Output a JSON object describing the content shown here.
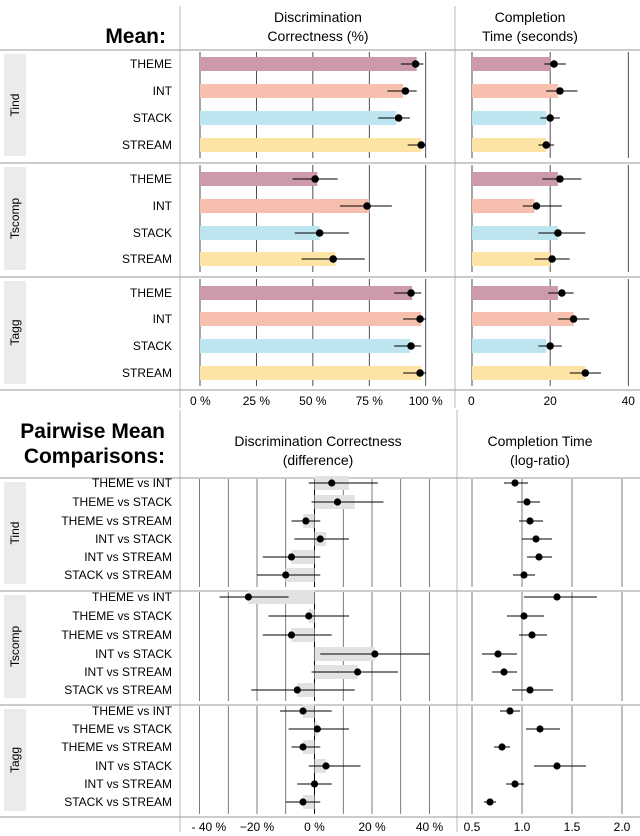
{
  "chart_data": [
    {
      "type": "bar",
      "panel_label": "Mean:",
      "columns": [
        {
          "title": [
            "Discrimination",
            "Correctness (%)"
          ],
          "tick_labels": [
            "0 %",
            "25 %",
            "50 %",
            "75 %",
            "100 %"
          ],
          "ticks": [
            0,
            25,
            50,
            75,
            100
          ],
          "xlim": [
            0,
            105
          ]
        },
        {
          "title": [
            "Completion",
            "Time (seconds)"
          ],
          "tick_labels": [
            "0",
            "20",
            "40"
          ],
          "ticks": [
            0,
            20,
            40
          ],
          "xlim": [
            0,
            43
          ]
        }
      ],
      "series_colors": {
        "THEME": "#cc99ad",
        "INT": "#f7bfad",
        "STACK": "#bde5ef",
        "STREAM": "#fde4a5"
      },
      "groups": [
        {
          "name": "Tind",
          "rows": [
            {
              "label": "THEME",
              "correctness": {
                "bar": 96,
                "mean": 95.5,
                "lo": 89,
                "hi": 99
              },
              "time": {
                "bar": 20,
                "mean": 21,
                "lo": 18.5,
                "hi": 24
              }
            },
            {
              "label": "INT",
              "correctness": {
                "bar": 90,
                "mean": 91,
                "lo": 83,
                "hi": 96
              },
              "time": {
                "bar": 22,
                "mean": 22.5,
                "lo": 19,
                "hi": 27
              }
            },
            {
              "label": "STACK",
              "correctness": {
                "bar": 87,
                "mean": 88,
                "lo": 79,
                "hi": 93
              },
              "time": {
                "bar": 19,
                "mean": 20,
                "lo": 17.5,
                "hi": 22.5
              }
            },
            {
              "label": "STREAM",
              "correctness": {
                "bar": 98,
                "mean": 98,
                "lo": 92,
                "hi": 100
              },
              "time": {
                "bar": 19,
                "mean": 19,
                "lo": 17,
                "hi": 21
              }
            }
          ]
        },
        {
          "name": "Tscomp",
          "rows": [
            {
              "label": "THEME",
              "correctness": {
                "bar": 52,
                "mean": 51,
                "lo": 41,
                "hi": 61
              },
              "time": {
                "bar": 22,
                "mean": 22.5,
                "lo": 18,
                "hi": 28
              }
            },
            {
              "label": "INT",
              "correctness": {
                "bar": 75,
                "mean": 74,
                "lo": 62,
                "hi": 85
              },
              "time": {
                "bar": 16,
                "mean": 16.5,
                "lo": 13,
                "hi": 23
              }
            },
            {
              "label": "STACK",
              "correctness": {
                "bar": 53,
                "mean": 53,
                "lo": 42,
                "hi": 66
              },
              "time": {
                "bar": 22,
                "mean": 22,
                "lo": 17,
                "hi": 29
              }
            },
            {
              "label": "STREAM",
              "correctness": {
                "bar": 60,
                "mean": 59,
                "lo": 45,
                "hi": 73
              },
              "time": {
                "bar": 20,
                "mean": 20.5,
                "lo": 16,
                "hi": 25
              }
            }
          ]
        },
        {
          "name": "Tagg",
          "rows": [
            {
              "label": "THEME",
              "correctness": {
                "bar": 94,
                "mean": 93.5,
                "lo": 86,
                "hi": 98
              },
              "time": {
                "bar": 22,
                "mean": 23,
                "lo": 19.5,
                "hi": 26
              }
            },
            {
              "label": "INT",
              "correctness": {
                "bar": 98,
                "mean": 97.5,
                "lo": 90,
                "hi": 100
              },
              "time": {
                "bar": 26,
                "mean": 26,
                "lo": 22,
                "hi": 30
              }
            },
            {
              "label": "STACK",
              "correctness": {
                "bar": 93,
                "mean": 93.5,
                "lo": 86,
                "hi": 98
              },
              "time": {
                "bar": 19,
                "mean": 20,
                "lo": 17,
                "hi": 23
              }
            },
            {
              "label": "STREAM",
              "correctness": {
                "bar": 98,
                "mean": 97.5,
                "lo": 90,
                "hi": 100
              },
              "time": {
                "bar": 29,
                "mean": 29,
                "lo": 25,
                "hi": 33
              }
            }
          ]
        }
      ]
    },
    {
      "type": "scatter",
      "panel_label": [
        "Pairwise Mean",
        "Comparisons:"
      ],
      "columns": [
        {
          "title": [
            "Discrimination Correctness",
            "(difference)"
          ],
          "tick_labels": [
            "- 40 %",
            "−20 %",
            "0 %",
            "20 %",
            "40 %"
          ],
          "ticks": [
            -40,
            -20,
            0,
            20,
            40
          ],
          "xlim": [
            -44,
            44
          ]
        },
        {
          "title": [
            "Completion Time",
            "(log-ratio)"
          ],
          "tick_labels": [
            "0.5",
            "1.0",
            "1.5",
            "2.0"
          ],
          "ticks": [
            0.5,
            1.0,
            1.5,
            2.0
          ],
          "xlim": [
            0.45,
            2.08
          ]
        }
      ],
      "groups": [
        {
          "name": "Tind",
          "rows": [
            {
              "label": "THEME vs INT",
              "correctness": {
                "mean": 6,
                "lo": -2,
                "hi": 22,
                "band_lo": 0,
                "band_hi": 12
              },
              "time": {
                "mean": 0.93,
                "lo": 0.82,
                "hi": 1.06
              }
            },
            {
              "label": "THEME vs STACK",
              "correctness": {
                "mean": 8,
                "lo": -1,
                "hi": 24,
                "band_lo": 0,
                "band_hi": 14
              },
              "time": {
                "mean": 1.05,
                "lo": 0.95,
                "hi": 1.18
              }
            },
            {
              "label": "THEME vs STREAM",
              "correctness": {
                "mean": -3,
                "lo": -8,
                "hi": 2,
                "band_lo": -4,
                "band_hi": 0
              },
              "time": {
                "mean": 1.08,
                "lo": 0.97,
                "hi": 1.21
              }
            },
            {
              "label": "INT vs STACK",
              "correctness": {
                "mean": 2,
                "lo": -7,
                "hi": 12,
                "band_lo": 0,
                "band_hi": 4
              },
              "time": {
                "mean": 1.14,
                "lo": 1.0,
                "hi": 1.3
              }
            },
            {
              "label": "INT vs STREAM",
              "correctness": {
                "mean": -8,
                "lo": -18,
                "hi": 2,
                "band_lo": -8,
                "band_hi": 0
              },
              "time": {
                "mean": 1.17,
                "lo": 1.05,
                "hi": 1.3
              }
            },
            {
              "label": "STACK vs STREAM",
              "correctness": {
                "mean": -10,
                "lo": -20,
                "hi": 2,
                "band_lo": -10,
                "band_hi": 0
              },
              "time": {
                "mean": 1.02,
                "lo": 0.91,
                "hi": 1.13
              }
            }
          ]
        },
        {
          "name": "Tscomp",
          "rows": [
            {
              "label": "THEME vs INT",
              "correctness": {
                "mean": -23,
                "lo": -33,
                "hi": -9,
                "band_lo": -23,
                "band_hi": 0
              },
              "time": {
                "mean": 1.35,
                "lo": 1.02,
                "hi": 1.75
              }
            },
            {
              "label": "THEME vs STACK",
              "correctness": {
                "mean": -2,
                "lo": -16,
                "hi": 12,
                "band_lo": -2,
                "band_hi": 0
              },
              "time": {
                "mean": 1.02,
                "lo": 0.85,
                "hi": 1.22
              }
            },
            {
              "label": "THEME vs STREAM",
              "correctness": {
                "mean": -8,
                "lo": -18,
                "hi": 6,
                "band_lo": -8,
                "band_hi": 0
              },
              "time": {
                "mean": 1.1,
                "lo": 0.97,
                "hi": 1.25
              }
            },
            {
              "label": "INT vs STACK",
              "correctness": {
                "mean": 21,
                "lo": 2,
                "hi": 40,
                "band_lo": 0,
                "band_hi": 21
              },
              "time": {
                "mean": 0.76,
                "lo": 0.6,
                "hi": 0.95
              }
            },
            {
              "label": "INT vs STREAM",
              "correctness": {
                "mean": 15,
                "lo": -1,
                "hi": 29,
                "band_lo": 0,
                "band_hi": 15
              },
              "time": {
                "mean": 0.82,
                "lo": 0.7,
                "hi": 0.95
              }
            },
            {
              "label": "STACK vs STREAM",
              "correctness": {
                "mean": -6,
                "lo": -22,
                "hi": 14,
                "band_lo": -6,
                "band_hi": 0
              },
              "time": {
                "mean": 1.08,
                "lo": 0.9,
                "hi": 1.31
              }
            }
          ]
        },
        {
          "name": "Tagg",
          "rows": [
            {
              "label": "THEME vs INT",
              "correctness": {
                "mean": -4,
                "lo": -12,
                "hi": 6,
                "band_lo": -4,
                "band_hi": 0
              },
              "time": {
                "mean": 0.88,
                "lo": 0.78,
                "hi": 0.98
              }
            },
            {
              "label": "THEME vs STACK",
              "correctness": {
                "mean": 1,
                "lo": -9,
                "hi": 12,
                "band_lo": 0,
                "band_hi": 1
              },
              "time": {
                "mean": 1.18,
                "lo": 1.04,
                "hi": 1.38
              }
            },
            {
              "label": "THEME vs STREAM",
              "correctness": {
                "mean": -4,
                "lo": -8,
                "hi": 2,
                "band_lo": -4,
                "band_hi": 0
              },
              "time": {
                "mean": 0.8,
                "lo": 0.72,
                "hi": 0.88
              }
            },
            {
              "label": "INT vs STACK",
              "correctness": {
                "mean": 4,
                "lo": -2,
                "hi": 16,
                "band_lo": 0,
                "band_hi": 4
              },
              "time": {
                "mean": 1.35,
                "lo": 1.12,
                "hi": 1.64
              }
            },
            {
              "label": "INT vs STREAM",
              "correctness": {
                "mean": 0,
                "lo": -6,
                "hi": 6,
                "band_lo": 0,
                "band_hi": 0
              },
              "time": {
                "mean": 0.93,
                "lo": 0.84,
                "hi": 1.02
              }
            },
            {
              "label": "STACK vs STREAM",
              "correctness": {
                "mean": -4,
                "lo": -10,
                "hi": 2,
                "band_lo": -4,
                "band_hi": 0
              },
              "time": {
                "mean": 0.68,
                "lo": 0.62,
                "hi": 0.74
              }
            }
          ]
        }
      ]
    }
  ]
}
